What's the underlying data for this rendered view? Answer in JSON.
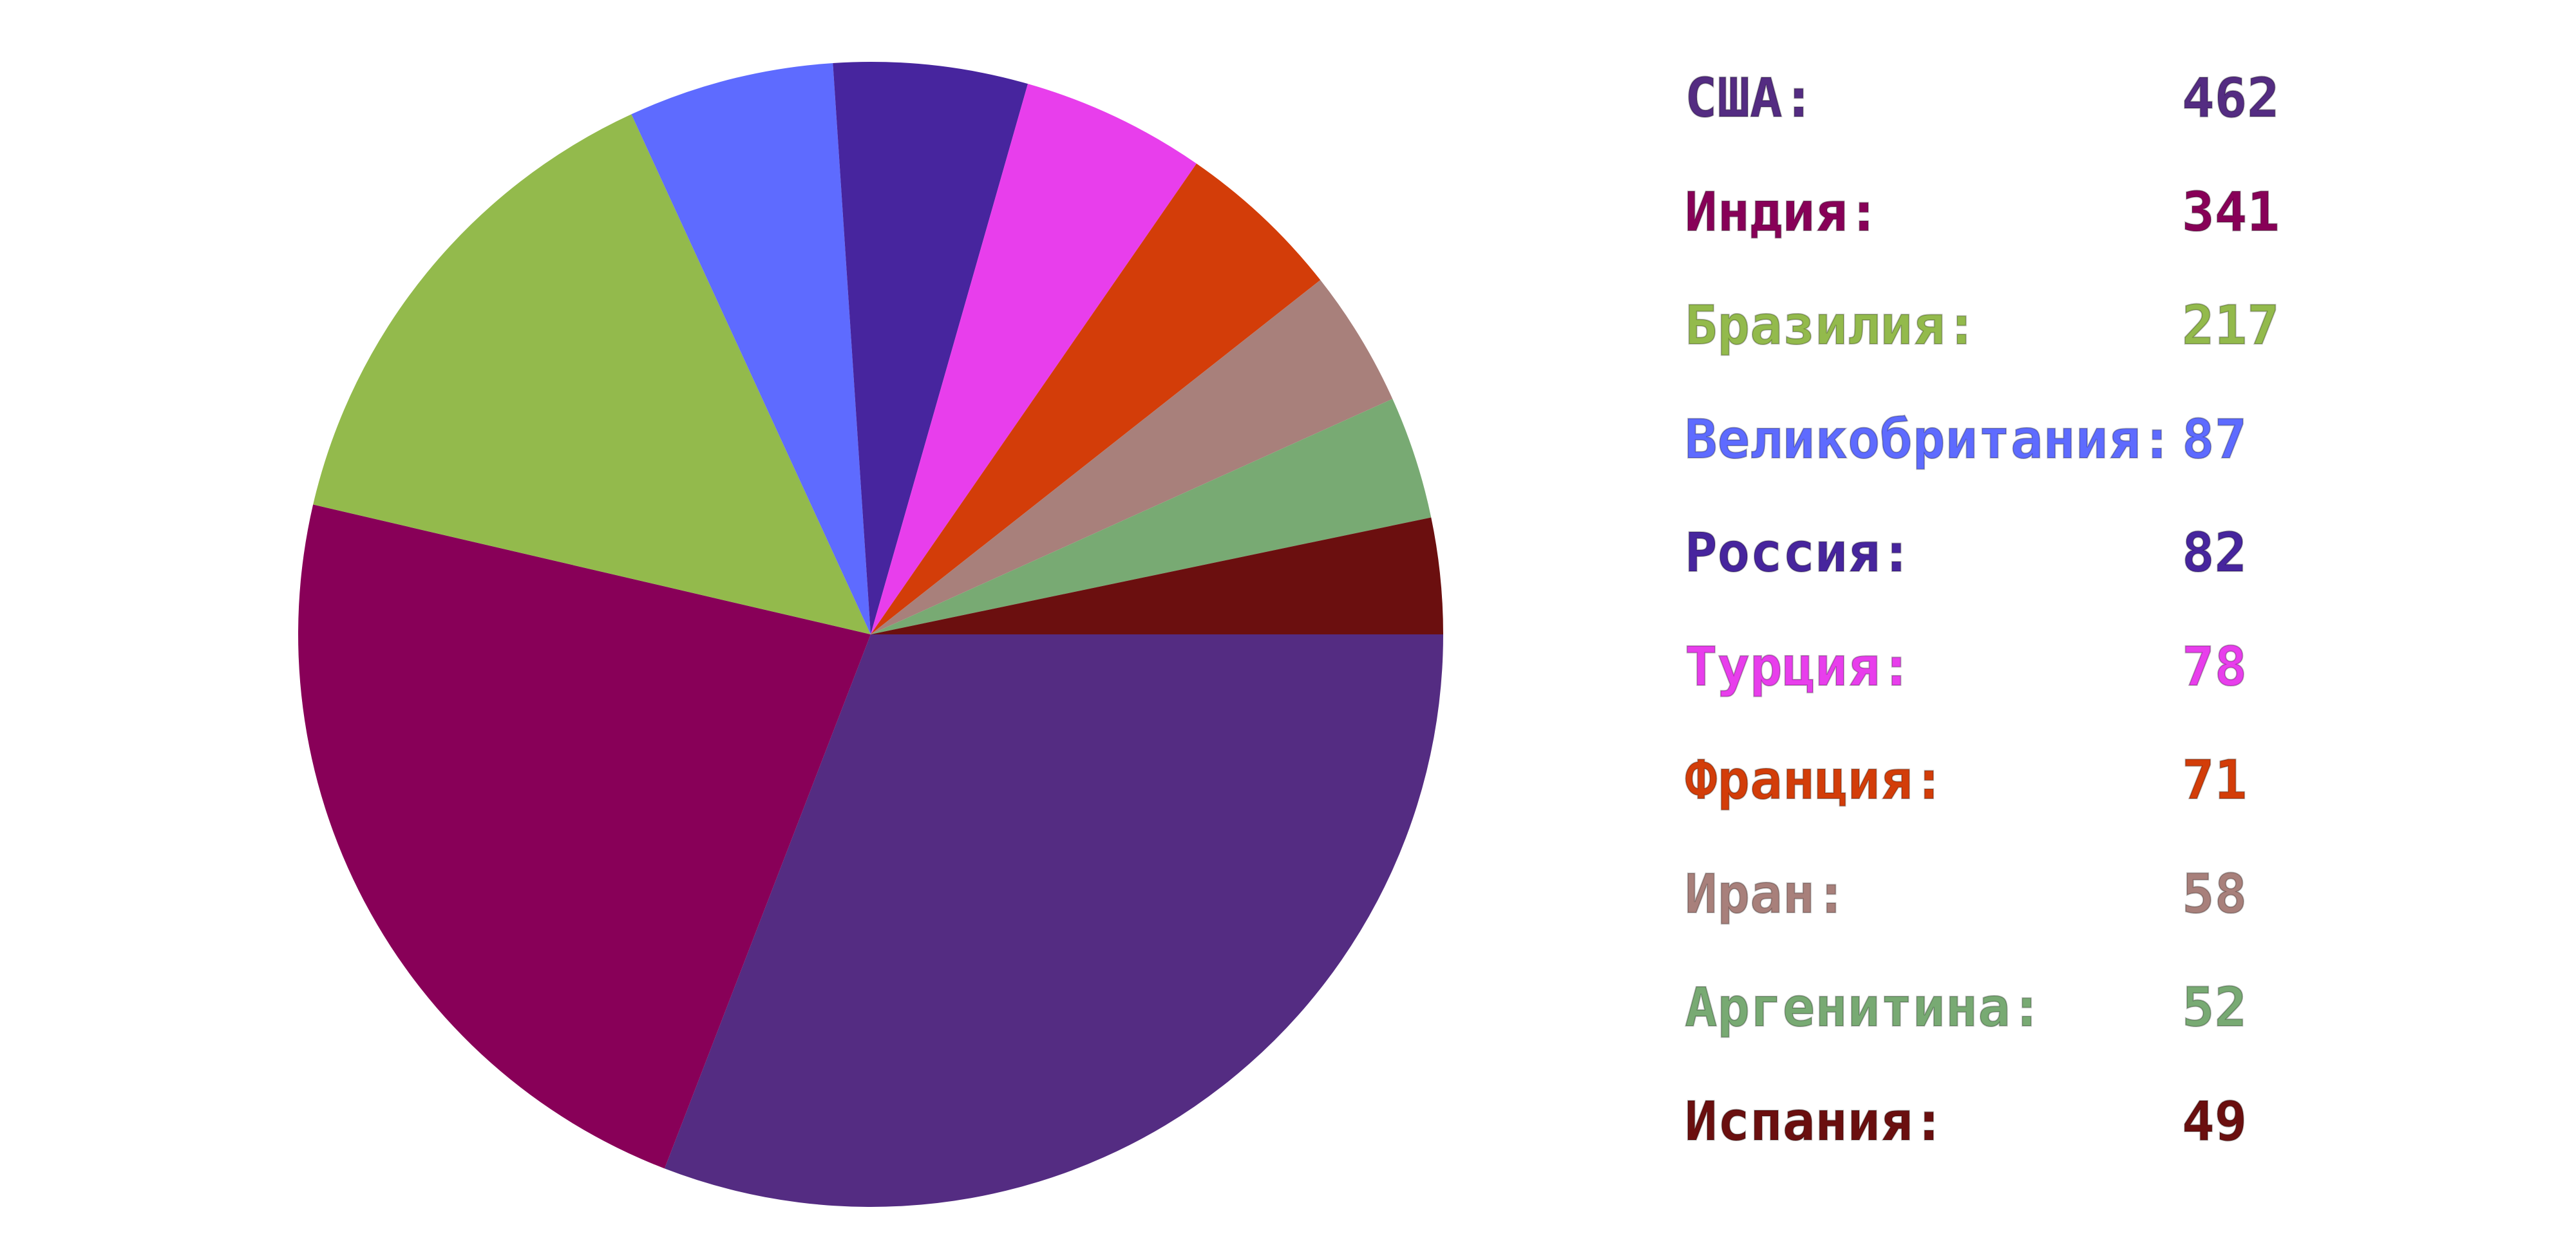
{
  "chart_data": {
    "type": "pie",
    "title": "",
    "categories": [
      "США",
      "Индия",
      "Бразилия",
      "Великобритания",
      "Россия",
      "Турция",
      "Франция",
      "Иран",
      "Аргенитина",
      "Испания"
    ],
    "values": [
      462,
      341,
      217,
      87,
      82,
      78,
      71,
      58,
      52,
      49
    ],
    "colors": [
      "#542c82",
      "#880058",
      "#93ba4c",
      "#5e6bff",
      "#47259e",
      "#e83eec",
      "#d33d09",
      "#a8807b",
      "#78aa73",
      "#6b0f0f"
    ],
    "start_angle_deg": 0,
    "direction": "clockwise",
    "legend_position": "right",
    "legend": [
      {
        "label": "США:",
        "value": "462"
      },
      {
        "label": "Индия:",
        "value": "341"
      },
      {
        "label": "Бразилия:",
        "value": "217"
      },
      {
        "label": "Великобритания:",
        "value": "87"
      },
      {
        "label": "Россия:",
        "value": "82"
      },
      {
        "label": "Турция:",
        "value": "78"
      },
      {
        "label": "Франция:",
        "value": "71"
      },
      {
        "label": "Иран:",
        "value": "58"
      },
      {
        "label": "Аргенитина:",
        "value": "52"
      },
      {
        "label": "Испания:",
        "value": "49"
      }
    ]
  }
}
